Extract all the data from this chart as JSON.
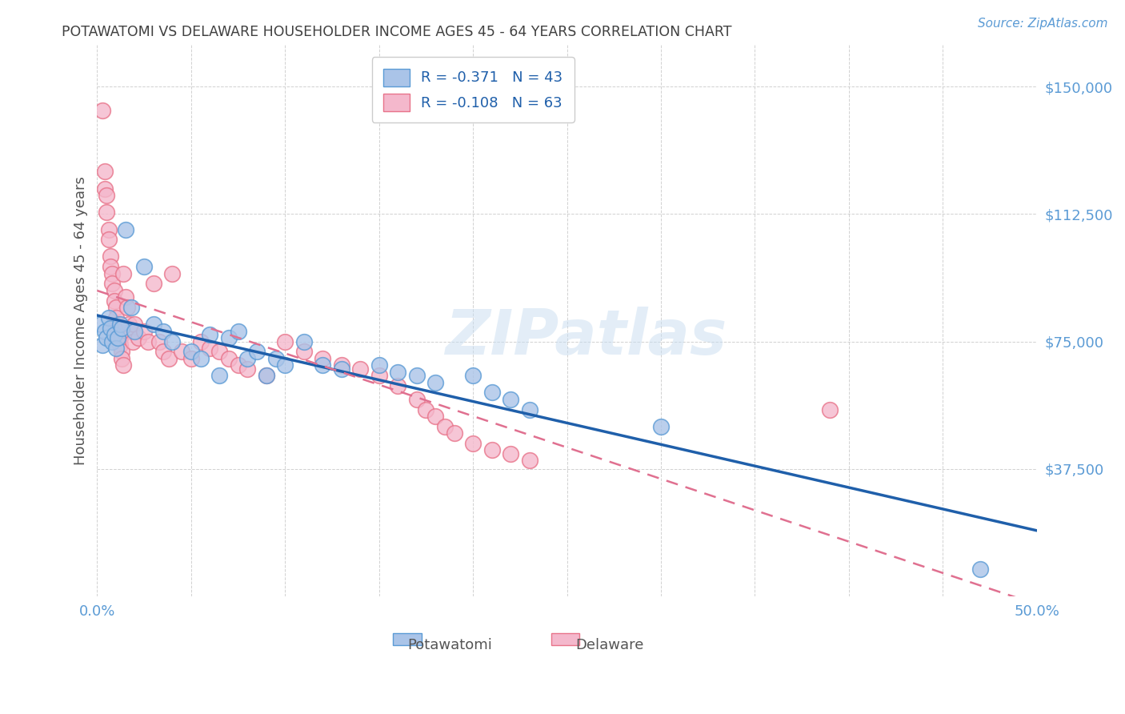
{
  "title": "POTAWATOMI VS DELAWARE HOUSEHOLDER INCOME AGES 45 - 64 YEARS CORRELATION CHART",
  "source": "Source: ZipAtlas.com",
  "ylabel": "Householder Income Ages 45 - 64 years",
  "xlim": [
    0.0,
    0.5
  ],
  "ylim": [
    0,
    162500
  ],
  "xticks": [
    0.0,
    0.05,
    0.1,
    0.15,
    0.2,
    0.25,
    0.3,
    0.35,
    0.4,
    0.45,
    0.5
  ],
  "xtick_labels": [
    "0.0%",
    "",
    "",
    "",
    "",
    "",
    "",
    "",
    "",
    "",
    "50.0%"
  ],
  "yticks": [
    0,
    37500,
    75000,
    112500,
    150000
  ],
  "ytick_labels": [
    "",
    "$37,500",
    "$75,000",
    "$112,500",
    "$150,000"
  ],
  "legend_r1": "R = -0.371",
  "legend_n1": "N = 43",
  "legend_r2": "R = -0.108",
  "legend_n2": "N = 63",
  "color_potawatomi_fill": "#aac4e8",
  "color_potawatomi_edge": "#5b9bd5",
  "color_delaware_fill": "#f4b8cc",
  "color_delaware_edge": "#e8748a",
  "color_line_potawatomi": "#1f5faa",
  "color_line_delaware": "#e07090",
  "color_axis_labels": "#5b9bd5",
  "color_title": "#404040",
  "watermark": "ZIPatlas",
  "potawatomi_x": [
    0.002,
    0.003,
    0.004,
    0.005,
    0.006,
    0.007,
    0.008,
    0.009,
    0.01,
    0.011,
    0.012,
    0.013,
    0.015,
    0.018,
    0.02,
    0.025,
    0.03,
    0.035,
    0.04,
    0.05,
    0.055,
    0.06,
    0.065,
    0.07,
    0.075,
    0.08,
    0.085,
    0.09,
    0.095,
    0.1,
    0.11,
    0.12,
    0.13,
    0.15,
    0.16,
    0.17,
    0.18,
    0.2,
    0.21,
    0.22,
    0.23,
    0.3,
    0.47
  ],
  "potawatomi_y": [
    80000,
    74000,
    78000,
    76000,
    82000,
    79000,
    75000,
    77000,
    73000,
    76000,
    80000,
    79000,
    108000,
    85000,
    78000,
    97000,
    80000,
    78000,
    75000,
    72000,
    70000,
    77000,
    65000,
    76000,
    78000,
    70000,
    72000,
    65000,
    70000,
    68000,
    75000,
    68000,
    67000,
    68000,
    66000,
    65000,
    63000,
    65000,
    60000,
    58000,
    55000,
    50000,
    8000
  ],
  "delaware_x": [
    0.003,
    0.004,
    0.004,
    0.005,
    0.005,
    0.006,
    0.006,
    0.007,
    0.007,
    0.008,
    0.008,
    0.009,
    0.009,
    0.01,
    0.01,
    0.011,
    0.011,
    0.012,
    0.012,
    0.013,
    0.013,
    0.014,
    0.014,
    0.015,
    0.016,
    0.017,
    0.018,
    0.019,
    0.02,
    0.022,
    0.025,
    0.027,
    0.03,
    0.033,
    0.035,
    0.038,
    0.04,
    0.045,
    0.05,
    0.055,
    0.06,
    0.065,
    0.07,
    0.075,
    0.08,
    0.09,
    0.1,
    0.11,
    0.12,
    0.13,
    0.14,
    0.15,
    0.16,
    0.17,
    0.175,
    0.18,
    0.185,
    0.19,
    0.2,
    0.21,
    0.22,
    0.23,
    0.39
  ],
  "delaware_y": [
    143000,
    125000,
    120000,
    118000,
    113000,
    108000,
    105000,
    100000,
    97000,
    95000,
    92000,
    90000,
    87000,
    85000,
    82000,
    80000,
    78000,
    76000,
    74000,
    72000,
    70000,
    68000,
    95000,
    88000,
    85000,
    80000,
    78000,
    75000,
    80000,
    76000,
    78000,
    75000,
    92000,
    75000,
    72000,
    70000,
    95000,
    72000,
    70000,
    75000,
    73000,
    72000,
    70000,
    68000,
    67000,
    65000,
    75000,
    72000,
    70000,
    68000,
    67000,
    65000,
    62000,
    58000,
    55000,
    53000,
    50000,
    48000,
    45000,
    43000,
    42000,
    40000,
    55000
  ]
}
